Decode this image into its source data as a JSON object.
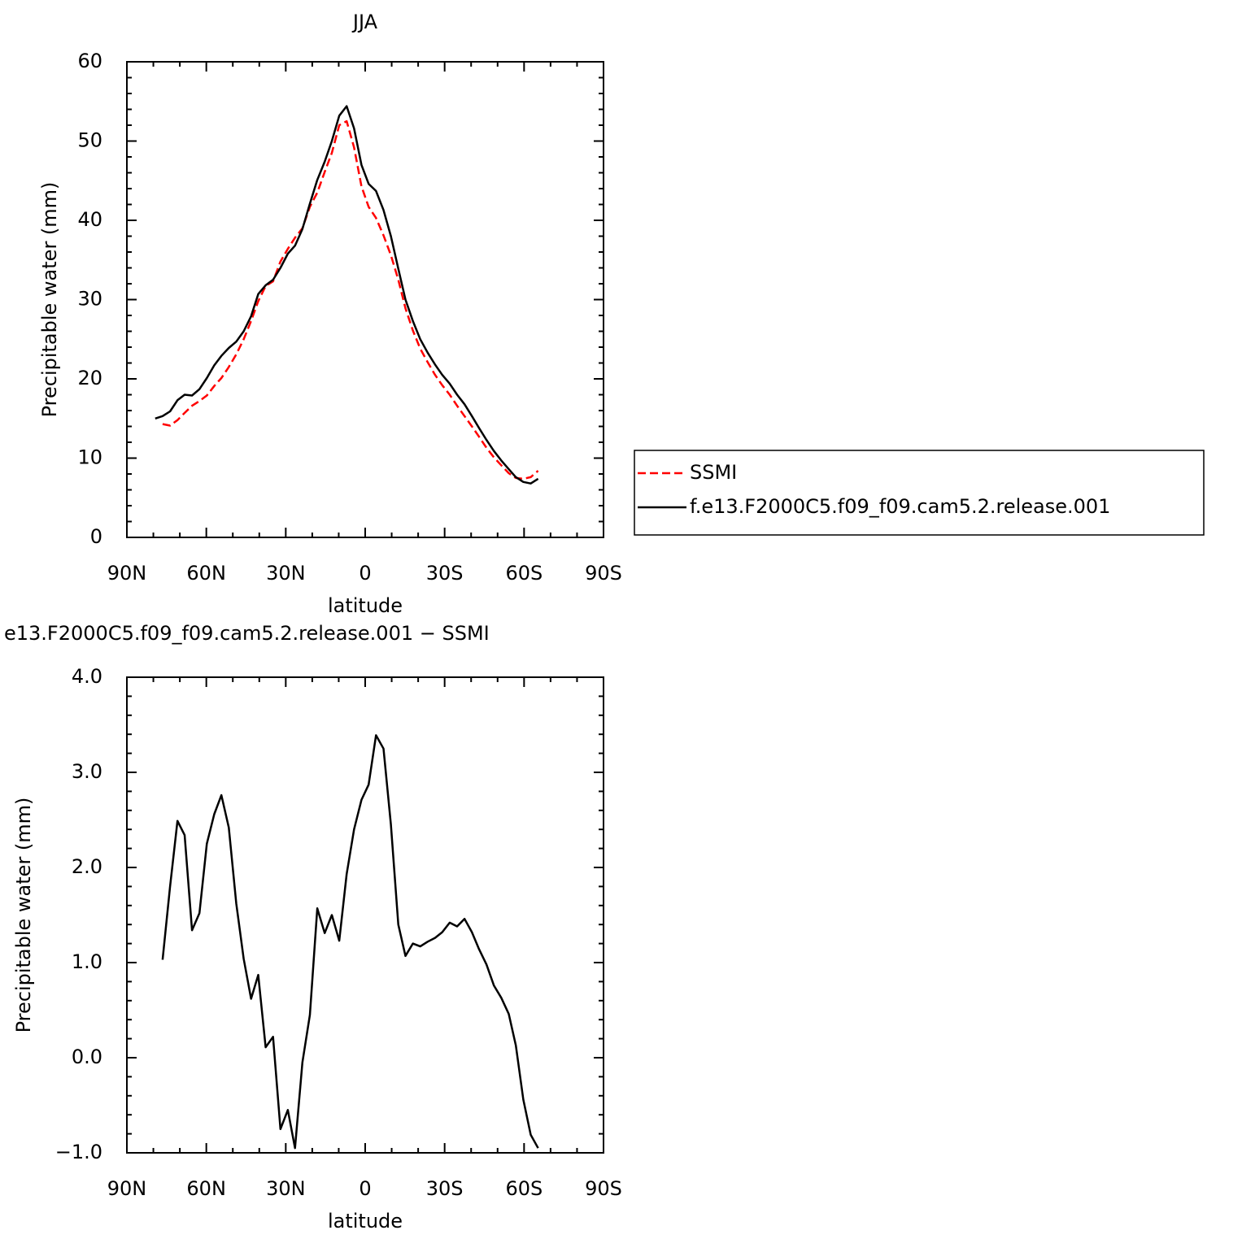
{
  "chart_data": [
    {
      "type": "line",
      "title": "JJA",
      "xlabel": "latitude",
      "ylabel": "Precipitable water (mm)",
      "x": [
        79.3,
        76.5,
        73.7,
        70.9,
        68.2,
        65.4,
        62.6,
        59.8,
        57.0,
        54.3,
        51.5,
        48.7,
        45.9,
        43.1,
        40.4,
        37.6,
        34.8,
        32.0,
        29.2,
        26.5,
        23.7,
        20.9,
        18.1,
        15.3,
        12.6,
        9.8,
        7.0,
        4.2,
        1.4,
        -1.3,
        -4.1,
        -6.9,
        -9.7,
        -12.5,
        -15.2,
        -18.0,
        -20.8,
        -23.6,
        -26.4,
        -29.1,
        -31.9,
        -34.7,
        -37.5,
        -40.3,
        -43.0,
        -45.8,
        -48.6,
        -51.4,
        -54.2,
        -56.9,
        -59.7,
        -62.5,
        -65.3
      ],
      "series": [
        {
          "name": "SSMI",
          "color": "#ff0000",
          "line_style": "dashed",
          "values": [
            null,
            14.3,
            14.1,
            14.8,
            15.7,
            16.6,
            17.2,
            17.9,
            19.1,
            20.1,
            21.5,
            23.1,
            25.0,
            27.3,
            29.8,
            31.7,
            32.3,
            34.8,
            36.4,
            37.8,
            39.0,
            41.7,
            43.5,
            46.1,
            48.5,
            52.0,
            52.5,
            49.2,
            44.3,
            41.7,
            40.3,
            38.1,
            35.6,
            32.5,
            28.9,
            26.1,
            23.8,
            22.1,
            20.5,
            19.2,
            18.0,
            16.6,
            15.3,
            14.0,
            12.7,
            11.3,
            10.1,
            9.1,
            8.1,
            7.5,
            7.4,
            7.6,
            8.4
          ]
        },
        {
          "name": "f.e13.F2000C5.f09_f09.cam5.2.release.001",
          "color": "#000000",
          "line_style": "solid",
          "values": [
            15.0,
            15.3,
            15.9,
            17.3,
            18.0,
            17.9,
            18.7,
            20.1,
            21.7,
            22.9,
            23.9,
            24.7,
            26.0,
            27.9,
            30.7,
            31.8,
            32.5,
            34.0,
            35.8,
            36.8,
            38.9,
            42.1,
            45.1,
            47.4,
            50.0,
            53.2,
            54.4,
            51.6,
            47.0,
            44.6,
            43.7,
            41.3,
            38.0,
            33.9,
            30.0,
            27.3,
            25.0,
            23.3,
            21.8,
            20.5,
            19.4,
            18.0,
            16.8,
            15.3,
            13.8,
            12.3,
            10.9,
            9.7,
            8.6,
            7.6,
            7.0,
            6.8,
            7.4
          ]
        }
      ],
      "xlim": [
        90,
        -90
      ],
      "xticks": [
        {
          "value": 90,
          "label": "90N"
        },
        {
          "value": 60,
          "label": "60N"
        },
        {
          "value": 30,
          "label": "30N"
        },
        0,
        {
          "value": -30,
          "label": "30S"
        },
        {
          "value": -60,
          "label": "60S"
        },
        {
          "value": -90,
          "label": "90S"
        }
      ],
      "ylim": [
        0,
        60
      ],
      "yticks": [
        0,
        10,
        20,
        30,
        40,
        50,
        60
      ],
      "legend": "outside-right"
    },
    {
      "type": "line",
      "title": "e13.F2000C5.f09_f09.cam5.2.release.001 − SSMI",
      "xlabel": "latitude",
      "ylabel": "Precipitable water (mm)",
      "x": [
        76.5,
        73.7,
        70.9,
        68.2,
        65.4,
        62.6,
        59.8,
        57.0,
        54.3,
        51.5,
        48.7,
        45.9,
        43.1,
        40.4,
        37.6,
        34.8,
        32.0,
        29.2,
        26.5,
        23.7,
        20.9,
        18.1,
        15.3,
        12.6,
        9.8,
        7.0,
        4.2,
        1.4,
        -1.3,
        -4.1,
        -6.9,
        -9.7,
        -12.5,
        -15.2,
        -18.0,
        -20.8,
        -23.6,
        -26.4,
        -29.1,
        -31.9,
        -34.7,
        -37.5,
        -40.3,
        -43.0,
        -45.8,
        -48.6,
        -51.4,
        -54.2,
        -56.9,
        -59.7,
        -62.5,
        -65.3
      ],
      "values": [
        1.03,
        1.8,
        2.49,
        2.34,
        1.34,
        1.52,
        2.25,
        2.56,
        2.76,
        2.42,
        1.62,
        1.04,
        0.62,
        0.87,
        0.11,
        0.22,
        -0.75,
        -0.55,
        -0.95,
        -0.05,
        0.45,
        1.57,
        1.31,
        1.5,
        1.23,
        1.93,
        2.4,
        2.71,
        2.87,
        3.39,
        3.25,
        2.45,
        1.4,
        1.07,
        1.2,
        1.17,
        1.22,
        1.26,
        1.32,
        1.42,
        1.38,
        1.46,
        1.32,
        1.14,
        0.98,
        0.76,
        0.63,
        0.46,
        0.13,
        -0.44,
        -0.81,
        -0.95
      ],
      "color": "#000000",
      "xlim": [
        90,
        -90
      ],
      "xticks": [
        {
          "value": 90,
          "label": "90N"
        },
        {
          "value": 60,
          "label": "60N"
        },
        {
          "value": 30,
          "label": "30N"
        },
        0,
        {
          "value": -30,
          "label": "30S"
        },
        {
          "value": -60,
          "label": "60S"
        },
        {
          "value": -90,
          "label": "90S"
        }
      ],
      "ylim": [
        -1,
        4
      ],
      "yticks": [
        {
          "value": -1,
          "label": "−1.0"
        },
        {
          "value": 0,
          "label": "0.0"
        },
        {
          "value": 1,
          "label": "1.0"
        },
        {
          "value": 2,
          "label": "2.0"
        },
        {
          "value": 3,
          "label": "3.0"
        },
        {
          "value": 4,
          "label": "4.0"
        }
      ]
    }
  ]
}
